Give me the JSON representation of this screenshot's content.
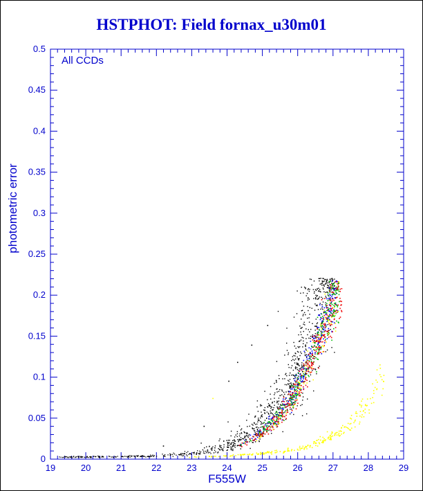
{
  "page": {
    "background": "#ffffff",
    "accent_blue": "#0000cc"
  },
  "chart_data": {
    "type": "scatter",
    "title": "HSTPHOT: Field fornax_u30m01",
    "annotation": "All CCDs",
    "xlabel": "F555W",
    "ylabel": "photometric error",
    "xlim": [
      19,
      29
    ],
    "ylim": [
      0,
      0.5
    ],
    "x_major_step": 1,
    "x_minor_step": 0.2,
    "y_major_step": 0.05,
    "y_minor_step": 0.01,
    "grid": false,
    "legend": "none",
    "frame_color": "#0000cc",
    "x_tick_labels": [
      "19",
      "20",
      "21",
      "22",
      "23",
      "24",
      "25",
      "26",
      "27",
      "28",
      "29"
    ],
    "y_tick_labels": [
      "0",
      "0.05",
      "0.1",
      "0.15",
      "0.2",
      "0.25",
      "0.3",
      "0.35",
      "0.4",
      "0.45",
      "0.5"
    ],
    "description": "Photometric error vs F555W magnitude; main error curve rises from ~0.003 at mag 22 to ~0.215 at mag 27 (black points scattered widest, red/green/blue CCD sequences tight and slightly fainter), plus a shallow yellow sequence rising to ~0.10 at mag 28.4",
    "trends": {
      "main": [
        [
          19.2,
          0.0025
        ],
        [
          21.0,
          0.003
        ],
        [
          22.0,
          0.004
        ],
        [
          23.0,
          0.007
        ],
        [
          23.5,
          0.01
        ],
        [
          24.0,
          0.015
        ],
        [
          24.5,
          0.024
        ],
        [
          25.0,
          0.04
        ],
        [
          25.5,
          0.065
        ],
        [
          25.9,
          0.095
        ],
        [
          26.3,
          0.135
        ],
        [
          26.6,
          0.17
        ],
        [
          26.9,
          0.2
        ],
        [
          27.15,
          0.215
        ]
      ],
      "shallow": [
        [
          22.8,
          0.0022
        ],
        [
          24.0,
          0.004
        ],
        [
          25.0,
          0.007
        ],
        [
          25.8,
          0.011
        ],
        [
          26.5,
          0.018
        ],
        [
          27.0,
          0.028
        ],
        [
          27.5,
          0.045
        ],
        [
          28.0,
          0.068
        ],
        [
          28.45,
          0.1
        ]
      ]
    },
    "series": [
      {
        "name": "black-bright",
        "color": "#000000",
        "trend": "main",
        "n": 200,
        "x_min": 19.25,
        "x_max": 23.6,
        "x_pow": 1.0,
        "x_shift": 0,
        "sigma": 0.18,
        "bias": 0,
        "cap": 0.22,
        "size": 1.3
      },
      {
        "name": "black-faint",
        "color": "#000000",
        "trend": "main",
        "n": 820,
        "x_min": 23.2,
        "x_max": 27.05,
        "x_pow": 0.55,
        "x_shift": 0,
        "sigma": 0.27,
        "bias": 0.1,
        "cap": 0.221,
        "size": 1.4
      },
      {
        "name": "ccd-blue",
        "color": "#0000ff",
        "trend": "main",
        "n": 260,
        "x_min": 24.2,
        "x_max": 27.15,
        "x_pow": 0.5,
        "x_shift": 0.15,
        "sigma": 0.1,
        "bias": 0,
        "cap": 0.218,
        "size": 1.6
      },
      {
        "name": "ccd-green",
        "color": "#00bb00",
        "trend": "main",
        "n": 260,
        "x_min": 24.2,
        "x_max": 27.18,
        "x_pow": 0.5,
        "x_shift": 0.18,
        "sigma": 0.1,
        "bias": 0,
        "cap": 0.218,
        "size": 1.6
      },
      {
        "name": "ccd-red",
        "color": "#ee0000",
        "trend": "main",
        "n": 300,
        "x_min": 24.0,
        "x_max": 27.25,
        "x_pow": 0.5,
        "x_shift": 0.24,
        "sigma": 0.1,
        "bias": 0,
        "cap": 0.219,
        "size": 1.6
      },
      {
        "name": "yellow-main",
        "color": "#ffff00",
        "trend": "main",
        "n": 70,
        "x_min": 24.8,
        "x_max": 27.2,
        "x_pow": 0.6,
        "x_shift": 0.28,
        "sigma": 0.1,
        "bias": 0,
        "cap": 0.217,
        "size": 1.6
      },
      {
        "name": "yellow-shallow",
        "color": "#ffff00",
        "trend": "shallow",
        "n": 240,
        "x_min": 22.8,
        "x_max": 28.45,
        "x_pow": 0.55,
        "x_shift": 0,
        "sigma": 0.12,
        "bias": 0,
        "cap": 0.12,
        "size": 1.6
      }
    ],
    "outliers": [
      {
        "x": 23.6,
        "y": 0.074,
        "color": "#ffff00"
      },
      {
        "x": 24.3,
        "y": 0.118,
        "color": "#000000"
      },
      {
        "x": 24.05,
        "y": 0.095,
        "color": "#000000"
      },
      {
        "x": 23.35,
        "y": 0.04,
        "color": "#000000"
      },
      {
        "x": 24.7,
        "y": 0.139,
        "color": "#000000"
      },
      {
        "x": 22.2,
        "y": 0.016,
        "color": "#000000"
      },
      {
        "x": 25.15,
        "y": 0.163,
        "color": "#000000"
      }
    ]
  }
}
